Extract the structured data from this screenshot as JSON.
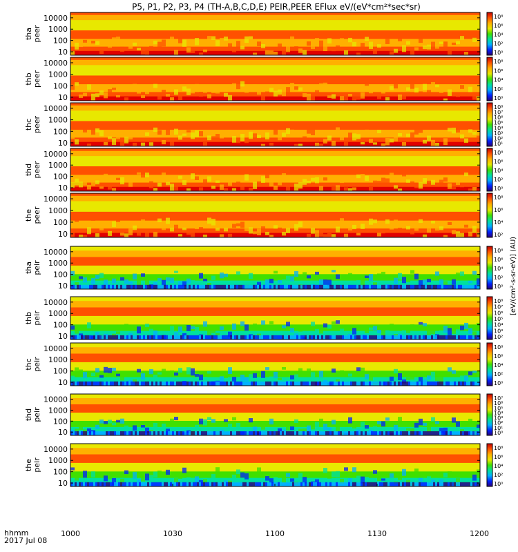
{
  "title": "P5, P1, P2, P3, P4 (TH-A,B,C,D,E) PEIR,PEER EFlux eV/(eV*cm²*sec*sr)",
  "time_axis": {
    "label_line1": "hhmm",
    "label_line2": "2017 Jul 08",
    "ticks": [
      "1000",
      "1030",
      "1100",
      "1130",
      "1200"
    ],
    "range": [
      "10:00",
      "12:00"
    ]
  },
  "energy_ticks": [
    "10",
    "100",
    "1000",
    "10000"
  ],
  "colorbar_unit": "[eV/(cm²-s-sr-eV)] (AU)",
  "colors": {
    "frame": "#000000",
    "spectra_palette": [
      "#2a0070",
      "#0020ff",
      "#00b0ff",
      "#00e0a0",
      "#40e000",
      "#e8e800",
      "#ffb000",
      "#ff5000",
      "#e00000",
      "#800000"
    ]
  },
  "chart_data": [
    {
      "type": "heatmap",
      "probe": "tha",
      "species": "peer",
      "ylabel_1": "tha",
      "ylabel_2": "peer",
      "ylim": [
        5,
        30000
      ],
      "yscale": "log",
      "colorbar_labels": [
        "10⁸",
        "10⁶",
        "10⁴",
        "10²",
        "10⁰"
      ]
    },
    {
      "type": "heatmap",
      "probe": "thb",
      "species": "peer",
      "ylabel_1": "thb",
      "ylabel_2": "peer",
      "ylim": [
        5,
        30000
      ],
      "yscale": "log",
      "colorbar_labels": [
        "10⁸",
        "10⁶",
        "10⁴",
        "10²",
        "10⁰"
      ]
    },
    {
      "type": "heatmap",
      "probe": "thc",
      "species": "peer",
      "ylabel_1": "thc",
      "ylabel_2": "peer",
      "ylim": [
        5,
        30000
      ],
      "yscale": "log",
      "colorbar_labels": [
        "10⁸",
        "10⁷",
        "10⁶",
        "10⁵",
        "10⁴",
        "10³",
        "10²",
        "10¹"
      ]
    },
    {
      "type": "heatmap",
      "probe": "thd",
      "species": "peer",
      "ylabel_1": "thd",
      "ylabel_2": "peer",
      "ylim": [
        5,
        30000
      ],
      "yscale": "log",
      "colorbar_labels": [
        "10⁸",
        "10⁶",
        "10⁴",
        "10²",
        "10⁰"
      ]
    },
    {
      "type": "heatmap",
      "probe": "the",
      "species": "peer",
      "ylabel_1": "the",
      "ylabel_2": "peer",
      "ylim": [
        5,
        30000
      ],
      "yscale": "log",
      "colorbar_labels": [
        "10⁸",
        "10⁶",
        "10⁴",
        "10²"
      ]
    },
    {
      "type": "heatmap",
      "probe": "tha",
      "species": "peir",
      "ylabel_1": "tha",
      "ylabel_2": "peir",
      "ylim": [
        5,
        30000
      ],
      "yscale": "log",
      "colorbar_labels": [
        "10⁸",
        "10⁶",
        "10⁴",
        "10²",
        "10⁰"
      ]
    },
    {
      "type": "heatmap",
      "probe": "thb",
      "species": "peir",
      "ylabel_1": "thb",
      "ylabel_2": "peir",
      "ylim": [
        5,
        30000
      ],
      "yscale": "log",
      "colorbar_labels": [
        "10⁸",
        "10⁷",
        "10⁶",
        "10⁵",
        "10⁴",
        "10³",
        "10²"
      ]
    },
    {
      "type": "heatmap",
      "probe": "thc",
      "species": "peir",
      "ylabel_1": "thc",
      "ylabel_2": "peir",
      "ylim": [
        5,
        30000
      ],
      "yscale": "log",
      "colorbar_labels": [
        "10⁸",
        "10⁶",
        "10⁴",
        "10²",
        "10⁰"
      ]
    },
    {
      "type": "heatmap",
      "probe": "thd",
      "species": "peir",
      "ylabel_1": "thd",
      "ylabel_2": "peir",
      "ylim": [
        5,
        30000
      ],
      "yscale": "log",
      "colorbar_labels": [
        "10⁷",
        "10⁶",
        "10⁵",
        "10⁴",
        "10³",
        "10²",
        "10¹",
        "10⁰"
      ]
    },
    {
      "type": "heatmap",
      "probe": "the",
      "species": "peir",
      "ylabel_1": "the",
      "ylabel_2": "peir",
      "ylim": [
        5,
        30000
      ],
      "yscale": "log",
      "colorbar_labels": [
        "10⁸",
        "10⁶",
        "10⁴",
        "10²",
        "10⁰"
      ]
    }
  ]
}
